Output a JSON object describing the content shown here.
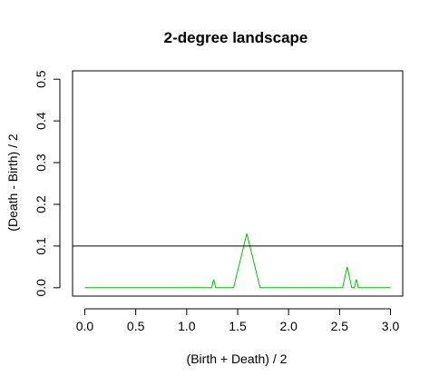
{
  "chart_data": {
    "type": "line",
    "title": "2-degree landscape",
    "xlabel": "(Birth + Death) / 2",
    "ylabel": "(Death - Birth) / 2",
    "xlim": [
      -0.12,
      3.12
    ],
    "ylim": [
      -0.02,
      0.52
    ],
    "x_ticks": [
      0.0,
      0.5,
      1.0,
      1.5,
      2.0,
      2.5,
      3.0
    ],
    "x_tick_labels": [
      "0.0",
      "0.5",
      "1.0",
      "1.5",
      "2.0",
      "2.5",
      "3.0"
    ],
    "y_ticks": [
      0.0,
      0.1,
      0.2,
      0.3,
      0.4,
      0.5
    ],
    "y_tick_labels": [
      "0.0",
      "0.1",
      "0.2",
      "0.3",
      "0.4",
      "0.5"
    ],
    "grid": false,
    "legend": "none",
    "series": [
      {
        "color": "#00c000",
        "x": [
          0.0,
          1.245,
          1.265,
          1.285,
          1.46,
          1.59,
          1.72,
          2.53,
          2.575,
          2.62,
          2.645,
          2.665,
          2.685,
          3.0
        ],
        "y": [
          0.0,
          0.0,
          0.02,
          0.0,
          0.0,
          0.13,
          0.0,
          0.0,
          0.05,
          0.0,
          0.0,
          0.02,
          0.0,
          0.0
        ]
      }
    ],
    "hline": {
      "y": 0.1,
      "color": "#000000"
    }
  }
}
